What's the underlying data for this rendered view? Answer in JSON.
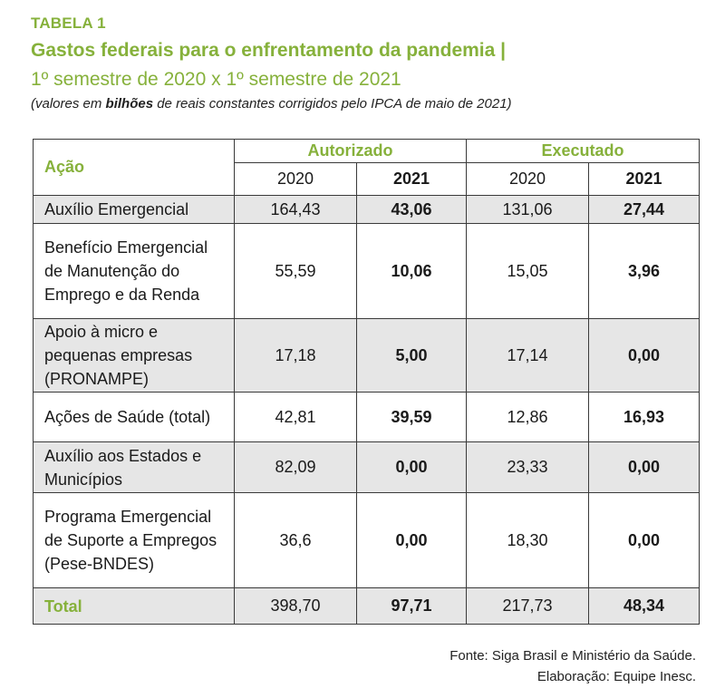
{
  "header": {
    "label": "TABELA 1",
    "title": "Gastos federais para o enfrentamento da pandemia |",
    "subtitle": "1º semestre de 2020 x 1º semestre de 2021",
    "note_prefix": "(valores em ",
    "note_bold": "bilhões",
    "note_suffix": " de reais constantes corrigidos pelo IPCA de maio de 2021)"
  },
  "table": {
    "action_header": "Ação",
    "groups": [
      "Autorizado",
      "Executado"
    ],
    "years": [
      "2020",
      "2021",
      "2020",
      "2021"
    ],
    "rows": [
      {
        "action": "Auxílio Emergencial",
        "values": [
          "164,43",
          "43,06",
          "131,06",
          "27,44"
        ]
      },
      {
        "action": "Benefício Emergencial de Manutenção do Emprego e da Renda",
        "values": [
          "55,59",
          "10,06",
          "15,05",
          "3,96"
        ]
      },
      {
        "action": "Apoio à micro e pequenas empresas (PRONAMPE)",
        "values": [
          "17,18",
          "5,00",
          "17,14",
          "0,00"
        ]
      },
      {
        "action": "Ações de Saúde (total)",
        "values": [
          "42,81",
          "39,59",
          "12,86",
          "16,93"
        ]
      },
      {
        "action": "Auxílio aos Estados e Municípios",
        "values": [
          "82,09",
          "0,00",
          "23,33",
          "0,00"
        ]
      },
      {
        "action": "Programa Emergencial de Suporte a Empregos (Pese-BNDES)",
        "values": [
          "36,6",
          "0,00",
          "18,30",
          "0,00"
        ]
      }
    ],
    "total": {
      "action": "Total",
      "values": [
        "398,70",
        "97,71",
        "217,73",
        "48,34"
      ]
    }
  },
  "footer": {
    "source": "Fonte: Siga Brasil e Ministério da Saúde.",
    "credit": "Elaboração: Equipe Inesc."
  },
  "colors": {
    "accent": "#86b13b",
    "row_shade": "#e6e6e6"
  }
}
